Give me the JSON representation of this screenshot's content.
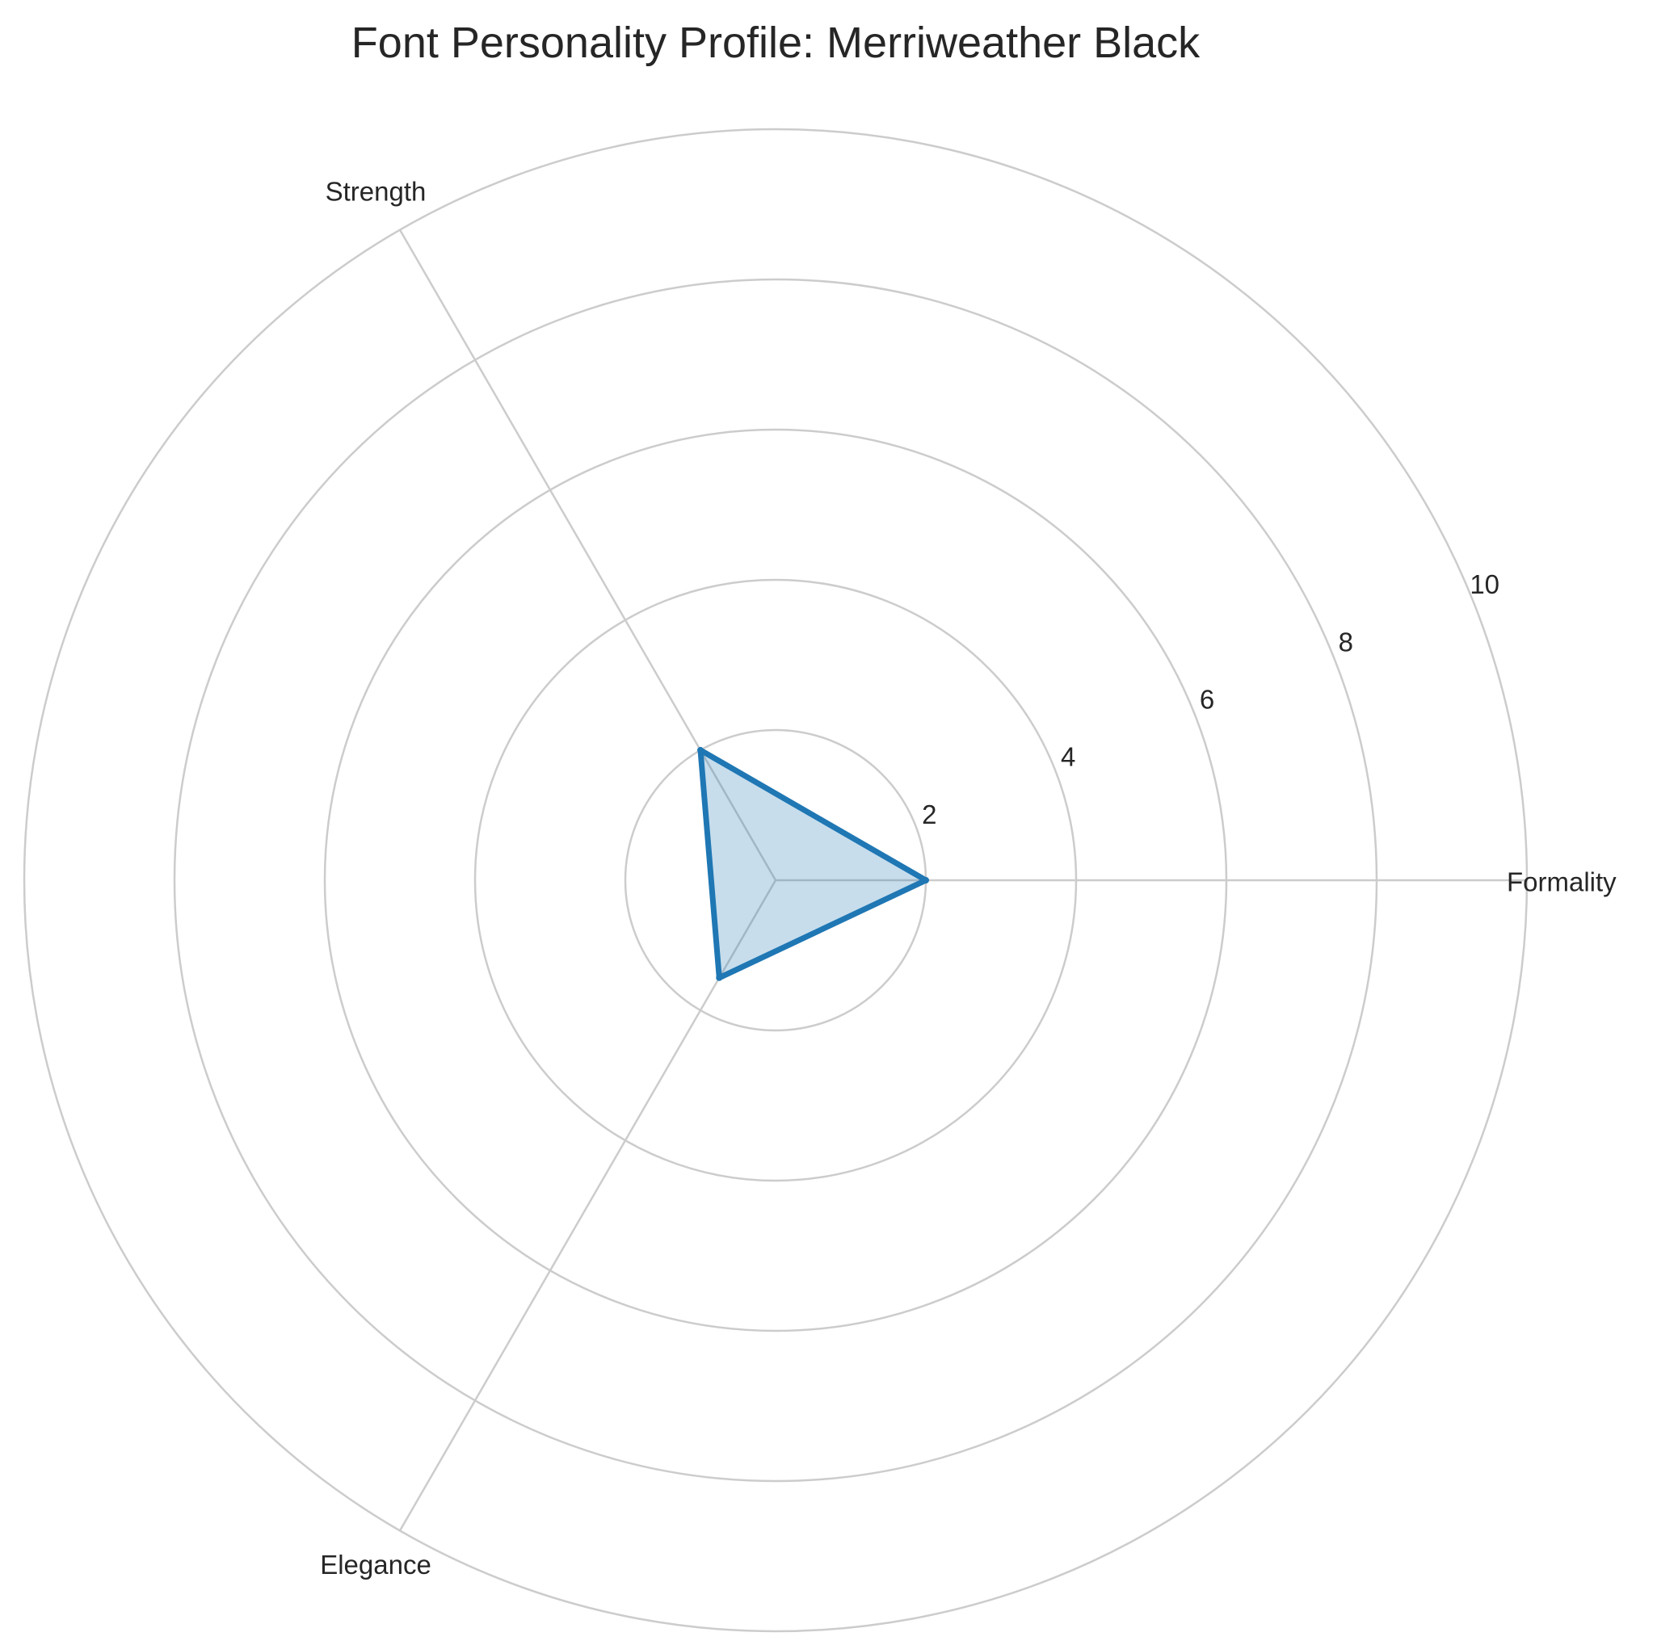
{
  "chart_data": {
    "type": "radar",
    "title": "Font Personality Profile: Merriweather Black",
    "categories": [
      "Formality",
      "Strength",
      "Elegance"
    ],
    "series": [
      {
        "values": [
          2,
          2,
          1.5
        ],
        "color": "#1f77b4"
      }
    ],
    "rlim": [
      0,
      10
    ],
    "rticks": [
      2,
      4,
      6,
      8,
      10
    ],
    "grid": true,
    "colors": {
      "line": "#1f77b4",
      "fill": "#1f77b4",
      "grid": "#cccccc",
      "text": "#262626"
    }
  }
}
